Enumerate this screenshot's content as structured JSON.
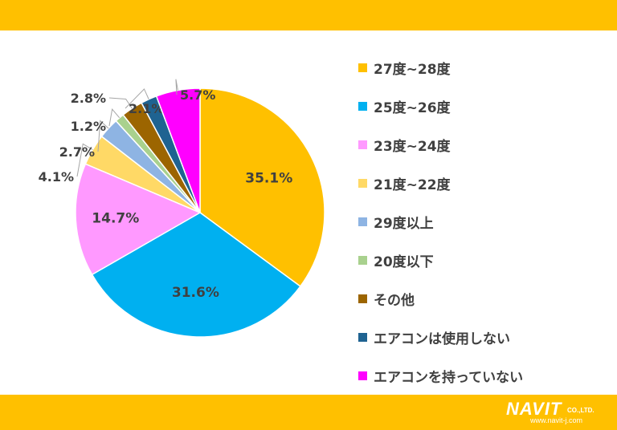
{
  "chart_data": {
    "type": "pie",
    "title": "",
    "slices": [
      {
        "label": "27度~28度",
        "value": 35.1,
        "value_label": "35.1%",
        "color": "#FFC000"
      },
      {
        "label": "25度~26度",
        "value": 31.6,
        "value_label": "31.6%",
        "color": "#00B0F0"
      },
      {
        "label": "23度~24度",
        "value": 14.7,
        "value_label": "14.7%",
        "color": "#FF99FF"
      },
      {
        "label": "21度~22度",
        "value": 4.1,
        "value_label": "4.1%",
        "color": "#FFD966"
      },
      {
        "label": "29度以上",
        "value": 2.7,
        "value_label": "2.7%",
        "color": "#8EB4E3"
      },
      {
        "label": "20度以下",
        "value": 1.2,
        "value_label": "1.2%",
        "color": "#A9D18E"
      },
      {
        "label": "その他",
        "value": 2.8,
        "value_label": "2.8%",
        "color": "#9C6500"
      },
      {
        "label": "エアコンは使用しない",
        "value": 2.1,
        "value_label": "2.1%",
        "color": "#1F6391"
      },
      {
        "label": "エアコンを持っていない",
        "value": 5.7,
        "value_label": "5.7%",
        "color": "#FF00FF"
      }
    ],
    "legend_position": "right"
  },
  "branding": {
    "logo_text": "NAVIT",
    "logo_suffix": "CO.,LTD.",
    "url": "www.navit-j.com",
    "band_color": "#FFC000"
  }
}
